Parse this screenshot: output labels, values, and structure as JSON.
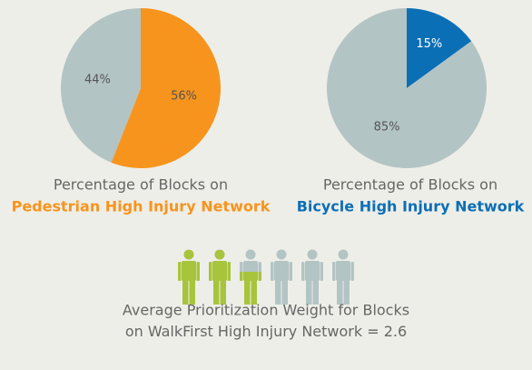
{
  "chart_data": [
    {
      "type": "pie",
      "title": "Percentage of Blocks on",
      "subtitle": "Pedestrian High Injury Network",
      "values": [
        56,
        44
      ],
      "value_labels": [
        "56%",
        "44%"
      ],
      "colors": [
        "#f7941d",
        "#b3c4c4"
      ],
      "subtitle_color": "#f7941d"
    },
    {
      "type": "pie",
      "title": "Percentage of Blocks on",
      "subtitle": "Bicycle High Injury Network",
      "values": [
        15,
        85
      ],
      "value_labels": [
        "15%",
        "85%"
      ],
      "colors": [
        "#0b6fb6",
        "#b3c4c4"
      ],
      "subtitle_color": "#0b6fb6"
    },
    {
      "type": "pictogram",
      "title": "Average Prioritization Weight for Blocks",
      "subtitle": "on WalkFirst High Injury Network =",
      "value": 2.6,
      "ylim": [
        0,
        6
      ],
      "color": "#a8c43c",
      "empty_color": "#b3c4c4"
    }
  ]
}
